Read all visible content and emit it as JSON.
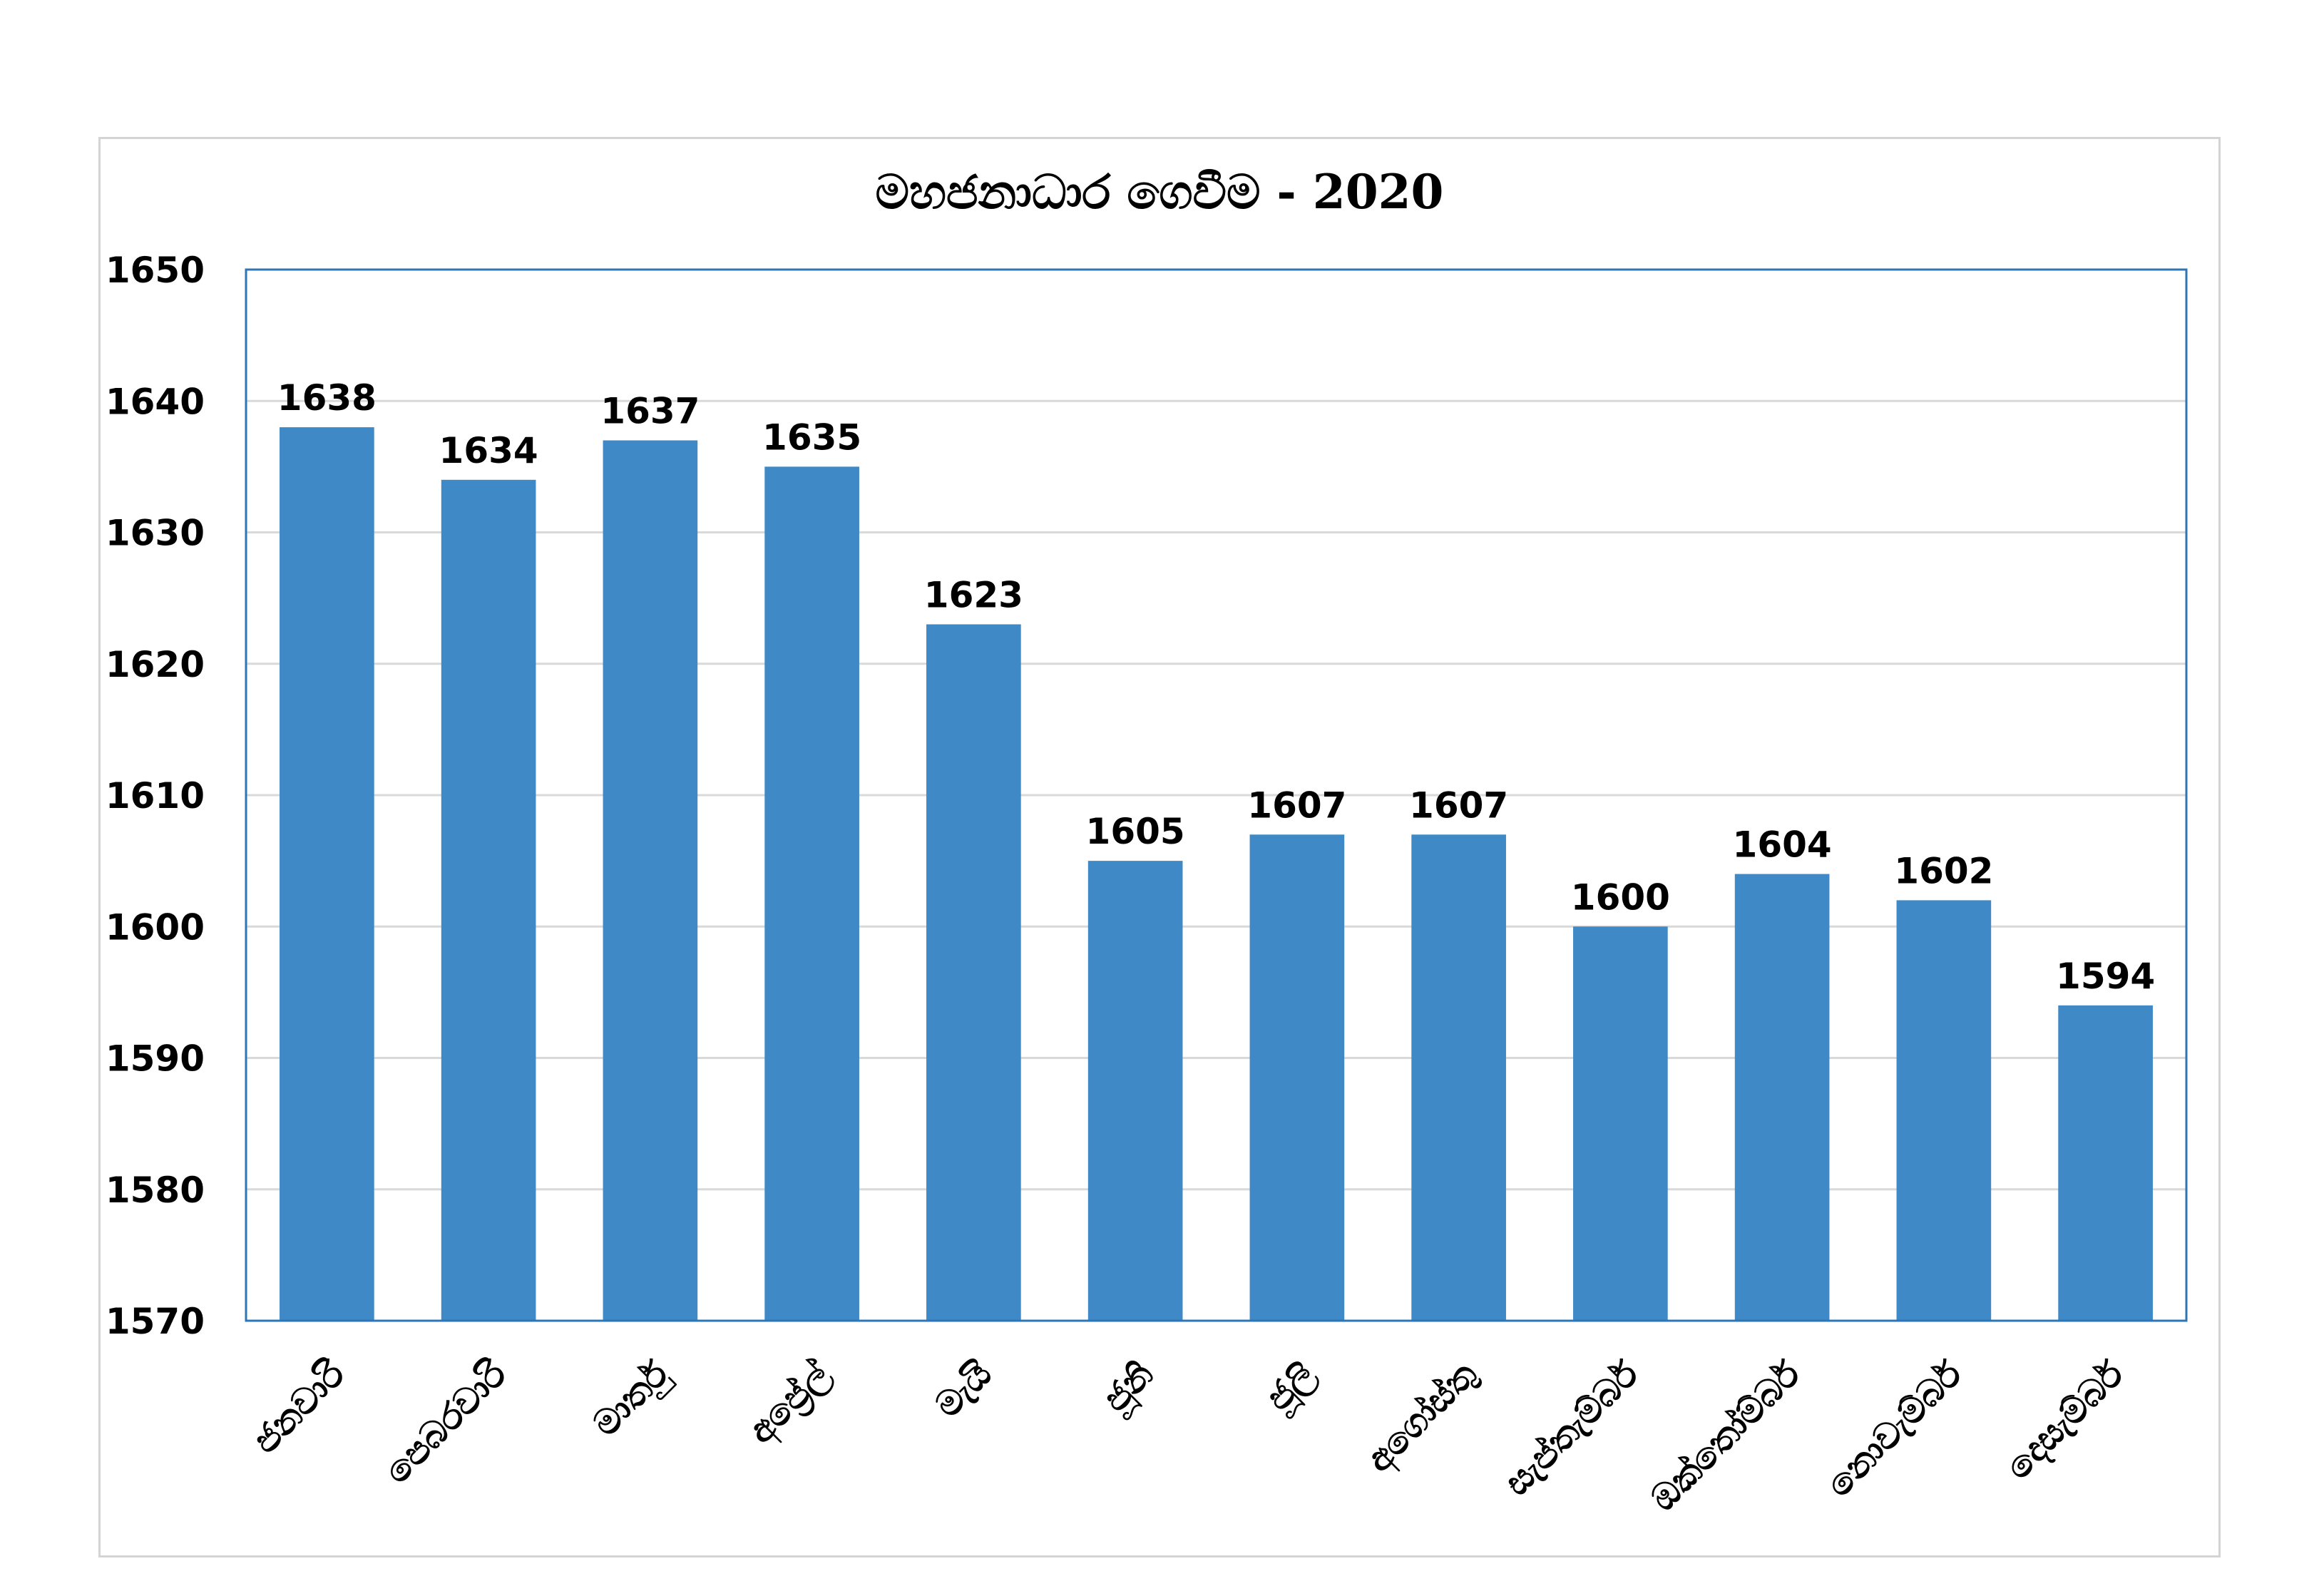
{
  "chart_data": {
    "type": "bar",
    "title": "මහජනාධාර ගෙවීම - 2020",
    "xlabel": "",
    "ylabel": "",
    "categories": [
      "ජනවාරි",
      "පෙබරවාරි",
      "මාර්තු",
      "අප්‍රේල්",
      "මැයි",
      "ජූනි",
      "ජූලි",
      "අගෝස්තු",
      "සැප්තැම්බර්",
      "ඔක්තෝම්බර්",
      "නොවැම්බර්",
      "දෙසැම්බර්"
    ],
    "values": [
      1638,
      1634,
      1637,
      1635,
      1623,
      1605,
      1607,
      1607,
      1600,
      1604,
      1602,
      1594
    ],
    "ylim": [
      1570,
      1650
    ],
    "yticks": [
      1570,
      1580,
      1590,
      1600,
      1610,
      1620,
      1630,
      1640,
      1650
    ],
    "grid": true,
    "legend": "none",
    "bar_color": "#3e89c6",
    "plot_border_color": "#2e75b6"
  }
}
